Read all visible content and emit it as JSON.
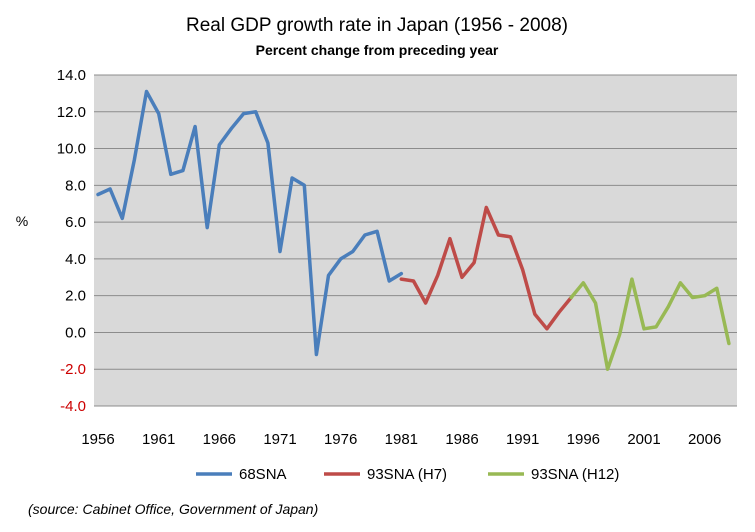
{
  "chart_data": {
    "type": "line",
    "title": "Real GDP growth rate in Japan (1956 - 2008)",
    "subtitle": "Percent change from preceding year",
    "ylabel": "%",
    "xlabel": "",
    "ylim": [
      -4.0,
      14.0
    ],
    "xlim": [
      1956,
      2008
    ],
    "y_ticks": [
      "14.0",
      "12.0",
      "10.0",
      "8.0",
      "6.0",
      "4.0",
      "2.0",
      "0.0",
      "-2.0",
      "-4.0"
    ],
    "y_tick_values": [
      14,
      12,
      10,
      8,
      6,
      4,
      2,
      0,
      -2,
      -4
    ],
    "x_ticks": [
      "1956",
      "1961",
      "1966",
      "1971",
      "1976",
      "1981",
      "1986",
      "1991",
      "1996",
      "2001",
      "2006"
    ],
    "x_tick_values": [
      1956,
      1961,
      1966,
      1971,
      1976,
      1981,
      1986,
      1991,
      1996,
      2001,
      2006
    ],
    "grid": true,
    "legend_position": "bottom",
    "series": [
      {
        "name": "68SNA",
        "color": "#4a7ebb",
        "x": [
          1956,
          1957,
          1958,
          1959,
          1960,
          1961,
          1962,
          1963,
          1964,
          1965,
          1966,
          1967,
          1968,
          1969,
          1970,
          1971,
          1972,
          1973,
          1974,
          1975,
          1976,
          1977,
          1978,
          1979,
          1980,
          1981
        ],
        "values": [
          7.5,
          7.8,
          6.2,
          9.4,
          13.1,
          11.9,
          8.6,
          8.8,
          11.2,
          5.7,
          10.2,
          11.1,
          11.9,
          12.0,
          10.3,
          4.4,
          8.4,
          8.0,
          -1.2,
          3.1,
          4.0,
          4.4,
          5.3,
          5.5,
          2.8,
          3.2
        ]
      },
      {
        "name": "93SNA (H7)",
        "color": "#be4b48",
        "x": [
          1981,
          1982,
          1983,
          1984,
          1985,
          1986,
          1987,
          1988,
          1989,
          1990,
          1991,
          1992,
          1993,
          1994,
          1995
        ],
        "values": [
          2.9,
          2.8,
          1.6,
          3.1,
          5.1,
          3.0,
          3.8,
          6.8,
          5.3,
          5.2,
          3.4,
          1.0,
          0.2,
          1.1,
          1.9
        ]
      },
      {
        "name": "93SNA (H12)",
        "color": "#98b954",
        "x": [
          1995,
          1996,
          1997,
          1998,
          1999,
          2000,
          2001,
          2002,
          2003,
          2004,
          2005,
          2006,
          2007,
          2008
        ],
        "values": [
          1.9,
          2.7,
          1.6,
          -2.0,
          -0.1,
          2.9,
          0.2,
          0.3,
          1.4,
          2.7,
          1.9,
          2.0,
          2.4,
          -0.6
        ]
      }
    ],
    "source": "(source:  Cabinet Office, Government of Japan)"
  }
}
